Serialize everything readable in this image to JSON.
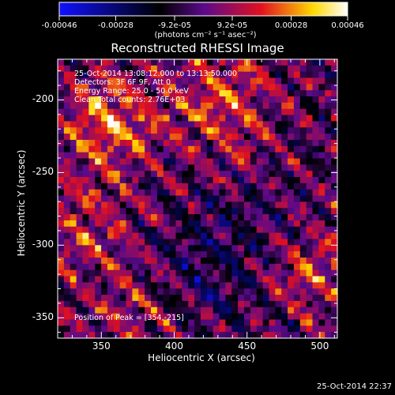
{
  "chart_data": {
    "type": "heatmap",
    "title": "Reconstructed RHESSI Image",
    "xlabel": "Heliocentric X (arcsec)",
    "ylabel": "Heliocentric Y (arcsec)",
    "xlim": [
      320,
      512
    ],
    "ylim": [
      -364,
      -172
    ],
    "x_ticks": [
      "350",
      "400",
      "450",
      "500"
    ],
    "y_ticks": [
      "-200",
      "-250",
      "-300",
      "-350"
    ],
    "colorbar": {
      "ticks": [
        "-0.00046",
        "-0.00028",
        "-9.2e-05",
        "9.2e-05",
        "0.00028",
        "0.00046"
      ],
      "range": [
        -0.00046,
        0.00046
      ],
      "units": "(photons cm⁻² s⁻¹ asec⁻²)",
      "colormap": [
        "#0000ff",
        "#000000",
        "#800080",
        "#ff0000",
        "#ffff00",
        "#ffffff"
      ]
    },
    "annotations": {
      "time": "25-Oct-2014 13:08:12.000 to 13:13:50.000",
      "detectors": "Detectors: 3F 6F 9F, Att 0",
      "energy": "Energy Range: 25.0 - 50.0 keV",
      "clean": "Clean     Total counts: 2.76E+03",
      "peak": "Position of Peak = [354,-215]"
    },
    "peak_position": [
      354,
      -215
    ]
  },
  "footer": {
    "date": "25-Oct-2014 22:37"
  }
}
